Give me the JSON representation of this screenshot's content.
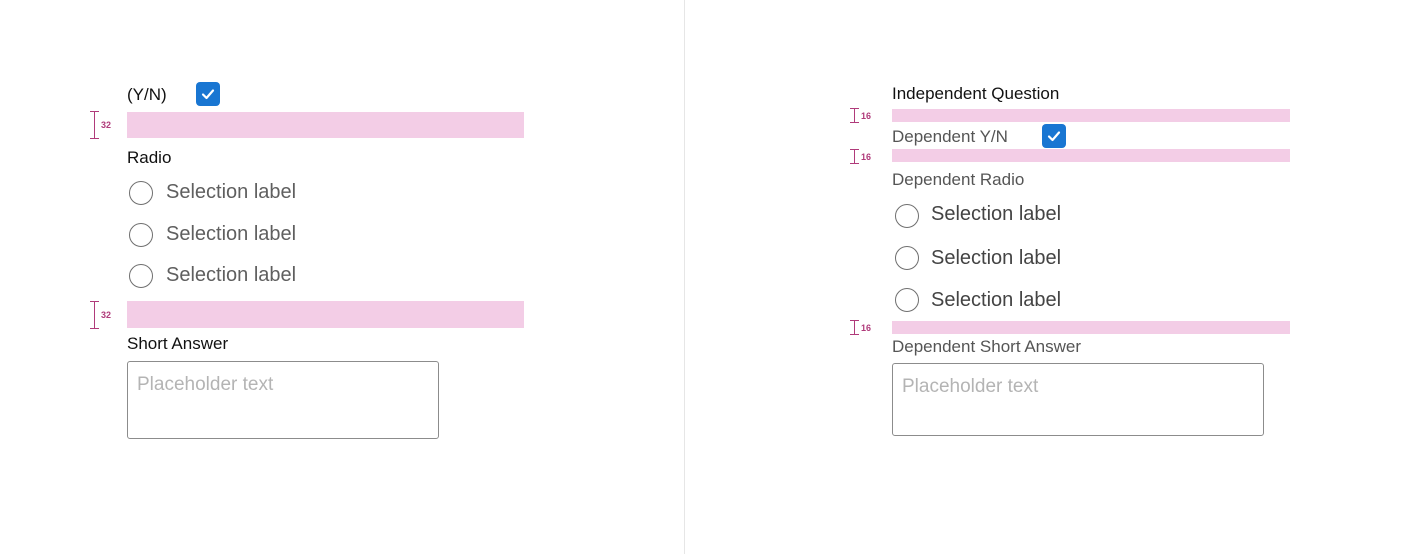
{
  "left": {
    "yn_label": "(Y/N)",
    "yn_checked": true,
    "spacer1_value": "32",
    "radio_label": "Radio",
    "radio_options": [
      "Selection label",
      "Selection label",
      "Selection label"
    ],
    "spacer2_value": "32",
    "short_answer_label": "Short Answer",
    "short_answer_placeholder": "Placeholder text"
  },
  "right": {
    "independent_label": "Independent Question",
    "spacer1_value": "16",
    "dependent_yn_label": "Dependent Y/N",
    "dependent_yn_checked": true,
    "spacer2_value": "16",
    "dependent_radio_label": "Dependent Radio",
    "radio_options": [
      "Selection label",
      "Selection label",
      "Selection label"
    ],
    "spacer3_value": "16",
    "dependent_short_answer_label": "Dependent Short Answer",
    "short_answer_placeholder": "Placeholder text"
  },
  "colors": {
    "spacer_fill": "#f3cde6",
    "spacer_marker": "#b03a7a",
    "checkbox_blue": "#1976d2"
  },
  "icons": {
    "checkbox": "check-icon",
    "spacer": "spacing-marker-icon"
  }
}
